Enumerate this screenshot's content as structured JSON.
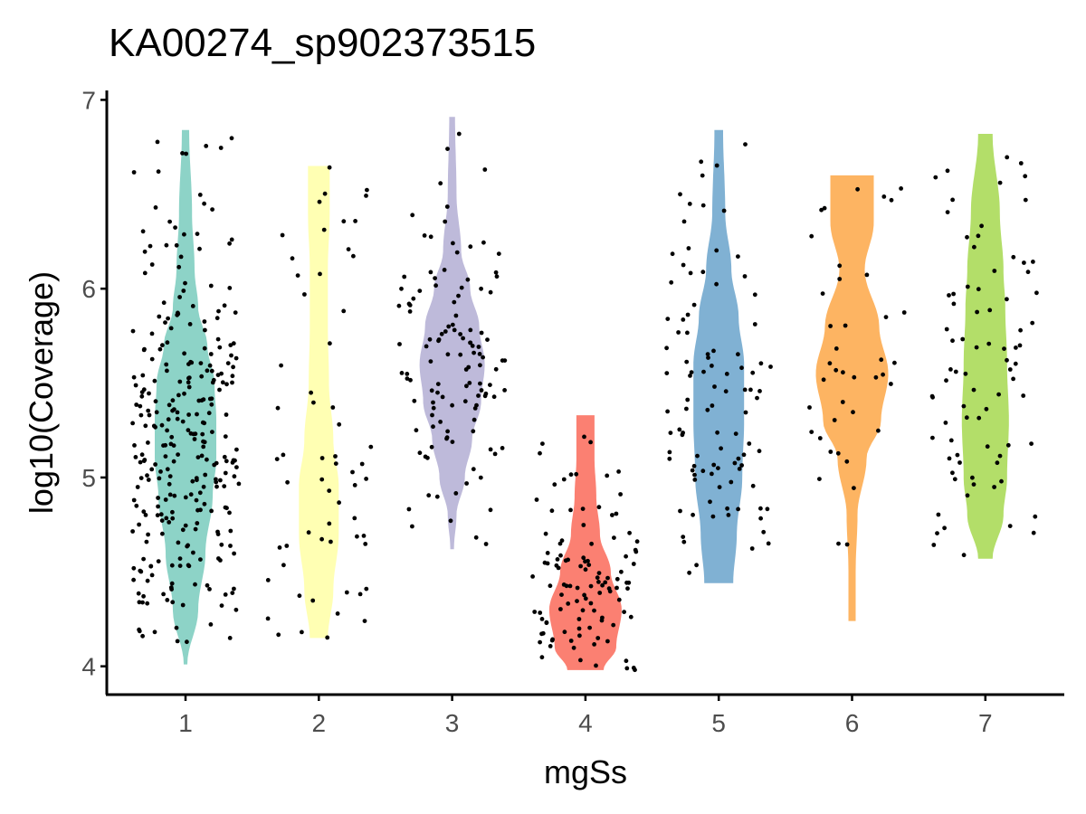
{
  "chart_data": {
    "type": "violin",
    "title": "KA00274_sp902373515",
    "xlabel": "mgSs",
    "ylabel": "log10(Coverage)",
    "categories": [
      "1",
      "2",
      "3",
      "4",
      "5",
      "6",
      "7"
    ],
    "y_ticks": [
      "4",
      "5",
      "6",
      "7"
    ],
    "ylim": [
      3.85,
      7.05
    ],
    "grid": false,
    "legend": "none",
    "colors": [
      "#8DD3C7",
      "#FFFFB3",
      "#BEBADA",
      "#FB8072",
      "#80B1D3",
      "#FDB462",
      "#B3DE69"
    ],
    "violins": [
      {
        "category": "1",
        "min": 4.01,
        "max": 6.84,
        "n_points": 290,
        "profile": [
          [
            4.01,
            0.05
          ],
          [
            4.3,
            0.35
          ],
          [
            4.6,
            0.55
          ],
          [
            4.9,
            0.75
          ],
          [
            5.1,
            0.85
          ],
          [
            5.3,
            0.85
          ],
          [
            5.5,
            0.8
          ],
          [
            5.7,
            0.6
          ],
          [
            5.9,
            0.35
          ],
          [
            6.1,
            0.25
          ],
          [
            6.4,
            0.18
          ],
          [
            6.84,
            0.1
          ]
        ]
      },
      {
        "category": "2",
        "min": 4.15,
        "max": 6.65,
        "n_points": 60,
        "profile": [
          [
            4.15,
            0.25
          ],
          [
            4.4,
            0.4
          ],
          [
            4.7,
            0.55
          ],
          [
            4.95,
            0.55
          ],
          [
            5.2,
            0.4
          ],
          [
            5.5,
            0.28
          ],
          [
            5.8,
            0.25
          ],
          [
            6.1,
            0.25
          ],
          [
            6.4,
            0.3
          ],
          [
            6.65,
            0.3
          ]
        ]
      },
      {
        "category": "3",
        "min": 4.62,
        "max": 6.91,
        "n_points": 120,
        "profile": [
          [
            4.62,
            0.05
          ],
          [
            4.8,
            0.12
          ],
          [
            5.0,
            0.35
          ],
          [
            5.2,
            0.55
          ],
          [
            5.4,
            0.8
          ],
          [
            5.6,
            0.9
          ],
          [
            5.8,
            0.75
          ],
          [
            6.0,
            0.5
          ],
          [
            6.2,
            0.25
          ],
          [
            6.5,
            0.12
          ],
          [
            6.91,
            0.08
          ]
        ]
      },
      {
        "category": "4",
        "min": 3.98,
        "max": 5.33,
        "n_points": 110,
        "profile": [
          [
            3.98,
            0.5
          ],
          [
            4.1,
            0.85
          ],
          [
            4.3,
            1.0
          ],
          [
            4.5,
            0.7
          ],
          [
            4.7,
            0.4
          ],
          [
            4.9,
            0.3
          ],
          [
            5.1,
            0.25
          ],
          [
            5.33,
            0.25
          ]
        ]
      },
      {
        "category": "5",
        "min": 4.44,
        "max": 6.84,
        "n_points": 100,
        "profile": [
          [
            4.44,
            0.4
          ],
          [
            4.7,
            0.5
          ],
          [
            5.0,
            0.65
          ],
          [
            5.3,
            0.7
          ],
          [
            5.6,
            0.7
          ],
          [
            5.85,
            0.55
          ],
          [
            6.1,
            0.35
          ],
          [
            6.4,
            0.18
          ],
          [
            6.84,
            0.12
          ]
        ]
      },
      {
        "category": "6",
        "min": 4.24,
        "max": 6.6,
        "n_points": 40,
        "profile": [
          [
            4.24,
            0.1
          ],
          [
            4.5,
            0.1
          ],
          [
            4.8,
            0.15
          ],
          [
            5.1,
            0.4
          ],
          [
            5.3,
            0.8
          ],
          [
            5.55,
            1.0
          ],
          [
            5.8,
            0.75
          ],
          [
            6.1,
            0.35
          ],
          [
            6.35,
            0.6
          ],
          [
            6.6,
            0.6
          ]
        ]
      },
      {
        "category": "7",
        "min": 4.57,
        "max": 6.82,
        "n_points": 80,
        "profile": [
          [
            4.57,
            0.2
          ],
          [
            4.8,
            0.5
          ],
          [
            5.0,
            0.6
          ],
          [
            5.3,
            0.65
          ],
          [
            5.6,
            0.6
          ],
          [
            5.9,
            0.55
          ],
          [
            6.1,
            0.5
          ],
          [
            6.4,
            0.4
          ],
          [
            6.82,
            0.2
          ]
        ]
      }
    ]
  }
}
